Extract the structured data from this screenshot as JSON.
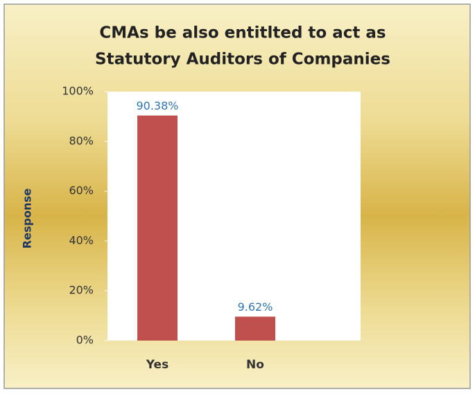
{
  "chart_data": {
    "type": "bar",
    "title": [
      "CMAs  be also entitlted to act as",
      "Statutory Auditors of Companies"
    ],
    "y_label": "Response",
    "categories": [
      "Yes",
      "No"
    ],
    "values": [
      90.38,
      9.62
    ],
    "value_labels": [
      "90.38%",
      "9.62%"
    ],
    "color": "#c0504d",
    "ylim": [
      0,
      100
    ],
    "yticks": [
      {
        "value": 0,
        "label": "0%"
      },
      {
        "value": 20,
        "label": "20%"
      },
      {
        "value": 40,
        "label": "40%"
      },
      {
        "value": 60,
        "label": "60%"
      },
      {
        "value": 80,
        "label": "80%"
      },
      {
        "value": 100,
        "label": "100%"
      }
    ],
    "grid": false
  }
}
